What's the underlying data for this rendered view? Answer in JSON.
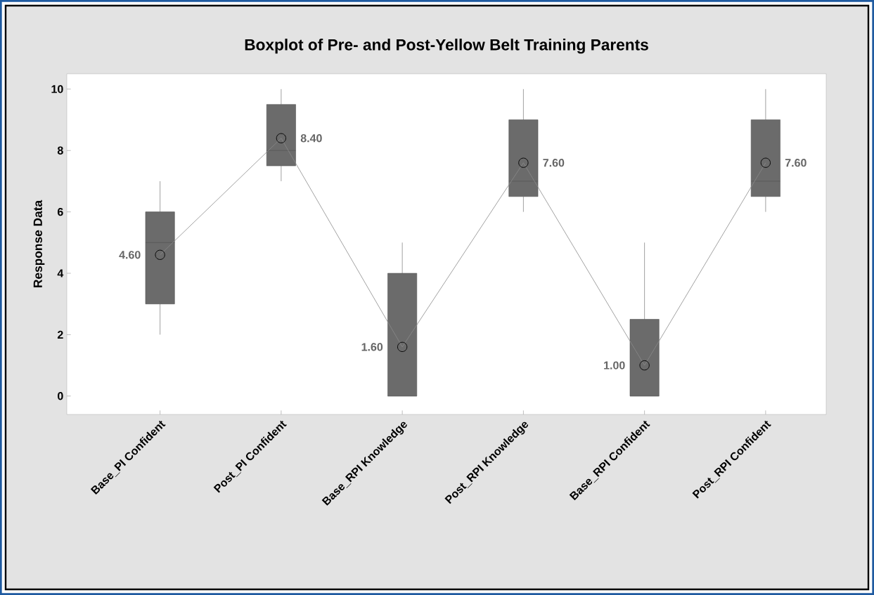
{
  "chart_data": {
    "type": "box",
    "title": "Boxplot of Pre- and Post-Yellow Belt Training Parents",
    "ylabel": "Response Data",
    "categories": [
      "Base_PI Confident",
      "Post_PI Confident",
      "Base_RPI Knowledge",
      "Post_RPI Knowledge",
      "Base_RPI Confident",
      "Post_RPI Confident"
    ],
    "color": "#6b6b6b",
    "boxes": [
      {
        "low": 2,
        "q1": 3,
        "median": 5,
        "q3": 6,
        "high": 7
      },
      {
        "low": 7,
        "q1": 7.5,
        "median": 8,
        "q3": 9.5,
        "high": 10
      },
      {
        "low": 0,
        "q1": 0,
        "median": 0,
        "q3": 4,
        "high": 5
      },
      {
        "low": 6,
        "q1": 6.5,
        "median": 7,
        "q3": 9,
        "high": 10
      },
      {
        "low": 0,
        "q1": 0,
        "median": 0,
        "q3": 2.5,
        "high": 5
      },
      {
        "low": 6,
        "q1": 6.5,
        "median": 7,
        "q3": 9,
        "high": 10
      }
    ],
    "series": [
      {
        "type": "line",
        "color": "#8a8a8a",
        "marker": "circle",
        "values": [
          4.6,
          8.4,
          1.6,
          7.6,
          1.0,
          7.6
        ],
        "value_labels": [
          "4.60",
          "8.40",
          "1.60",
          "7.60",
          "1.00",
          "7.60"
        ]
      }
    ],
    "ylim": [
      -0.6,
      10.5
    ],
    "yticks": [
      0,
      2,
      4,
      6,
      8,
      10
    ],
    "grid": false,
    "legend": false
  }
}
